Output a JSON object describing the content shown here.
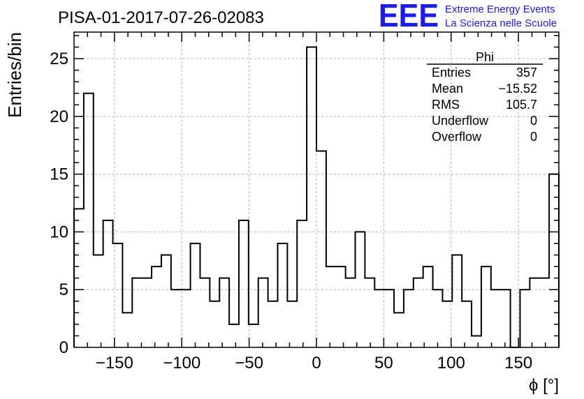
{
  "chart_data": {
    "type": "histogram",
    "title": "PISA-01-2017-07-26-02083",
    "xlabel": "ϕ [°]",
    "ylabel": "Entries/bin",
    "xlim": [
      -180,
      180
    ],
    "ylim": [
      0,
      27.3
    ],
    "grid": true,
    "bin_width": 7.2,
    "x_ticks": [
      -150,
      -100,
      -50,
      0,
      50,
      100,
      150
    ],
    "x_tick_labels": [
      "−150",
      "−100",
      "−50",
      "0",
      "50",
      "100",
      "150"
    ],
    "y_ticks": [
      0,
      5,
      10,
      15,
      20,
      25
    ],
    "y_tick_labels": [
      "0",
      "5",
      "10",
      "15",
      "20",
      "25"
    ],
    "counts": [
      12,
      22,
      8,
      11,
      9,
      3,
      6,
      6,
      7,
      8,
      5,
      5,
      9,
      6,
      4,
      6,
      2,
      11,
      2,
      6,
      4,
      9,
      4,
      11,
      26,
      17,
      7,
      7,
      6,
      10,
      6,
      5,
      5,
      3,
      5,
      6,
      7,
      5,
      4,
      8,
      4,
      1,
      7,
      5,
      5,
      0,
      5,
      6,
      6,
      15
    ],
    "stats": {
      "title": "Phi",
      "rows": [
        {
          "label": "Entries",
          "value": "357"
        },
        {
          "label": "Mean",
          "value": "−15.52"
        },
        {
          "label": "RMS",
          "value": "105.7"
        },
        {
          "label": "Underflow",
          "value": "0"
        },
        {
          "label": "Overflow",
          "value": "0"
        }
      ]
    }
  },
  "logo": {
    "mark": "EEE",
    "line1": "Extreme Energy Events",
    "line2": "La Scienza nelle Scuole"
  }
}
